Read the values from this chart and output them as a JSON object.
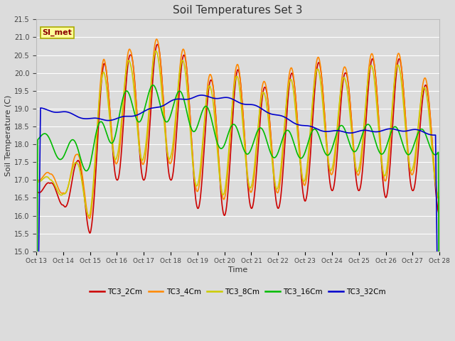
{
  "title": "Soil Temperatures Set 3",
  "xlabel": "Time",
  "ylabel": "Soil Temperature (C)",
  "ylim": [
    15.0,
    21.5
  ],
  "bg_color": "#dcdcdc",
  "plot_bg_color": "#dcdcdc",
  "grid_color": "#ffffff",
  "annotation_text": "SI_met",
  "annotation_bg": "#ffff99",
  "annotation_border": "#aaaa00",
  "series": {
    "TC3_2Cm": {
      "color": "#cc0000",
      "lw": 1.2
    },
    "TC3_4Cm": {
      "color": "#ff8800",
      "lw": 1.2
    },
    "TC3_8Cm": {
      "color": "#cccc00",
      "lw": 1.2
    },
    "TC3_16Cm": {
      "color": "#00bb00",
      "lw": 1.2
    },
    "TC3_32Cm": {
      "color": "#0000cc",
      "lw": 1.2
    }
  },
  "xtick_labels": [
    "Oct 13",
    "Oct 14",
    "Oct 15",
    "Oct 16",
    "Oct 17",
    "Oct 18",
    "Oct 19",
    "Oct 20",
    "Oct 21",
    "Oct 22",
    "Oct 23",
    "Oct 24",
    "Oct 25",
    "Oct 26",
    "Oct 27",
    "Oct 28"
  ],
  "n_days": 15
}
